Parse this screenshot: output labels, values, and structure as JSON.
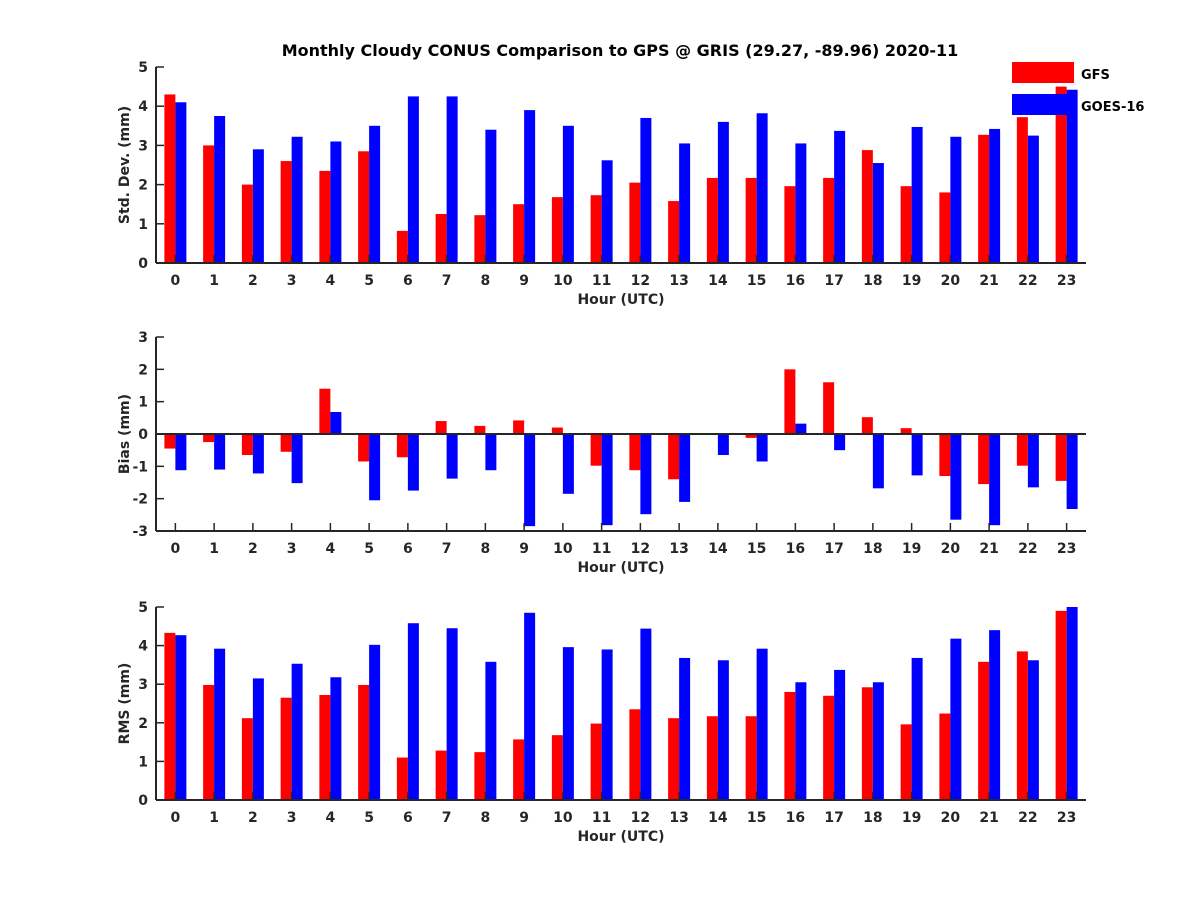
{
  "figure_title": "Monthly Cloudy CONUS Comparison to GPS @ GRIS (29.27, -89.96) 2020-11",
  "colors": {
    "GFS": "#ff0000",
    "GOES-16": "#0000ff"
  },
  "legend": {
    "placement": "top-right",
    "entries": [
      "GFS",
      "GOES-16"
    ]
  },
  "chart_data": [
    {
      "type": "bar",
      "xlabel": "Hour (UTC)",
      "ylabel": "Std. Dev. (mm)",
      "ylim": [
        0,
        5
      ],
      "yticks": [
        "0",
        "1",
        "2",
        "3",
        "4",
        "5"
      ],
      "categories": [
        "0",
        "1",
        "2",
        "3",
        "4",
        "5",
        "6",
        "7",
        "8",
        "9",
        "10",
        "11",
        "12",
        "13",
        "14",
        "15",
        "16",
        "17",
        "18",
        "19",
        "20",
        "21",
        "22",
        "23"
      ],
      "series": [
        {
          "name": "GFS",
          "values": [
            4.3,
            3.0,
            2.0,
            2.6,
            2.35,
            2.85,
            0.82,
            1.25,
            1.22,
            1.5,
            1.68,
            1.73,
            2.05,
            1.58,
            2.17,
            2.17,
            1.96,
            2.17,
            2.88,
            1.96,
            1.8,
            3.27,
            3.72,
            4.5
          ]
        },
        {
          "name": "GOES-16",
          "values": [
            4.1,
            3.75,
            2.9,
            3.22,
            3.1,
            3.5,
            4.25,
            4.25,
            3.4,
            3.9,
            3.5,
            2.62,
            3.7,
            3.05,
            3.6,
            3.82,
            3.05,
            3.37,
            2.55,
            3.47,
            3.22,
            3.42,
            3.25,
            4.42
          ]
        }
      ]
    },
    {
      "type": "bar",
      "xlabel": "Hour (UTC)",
      "ylabel": "Bias (mm)",
      "ylim": [
        -3,
        3
      ],
      "yticks": [
        "-3",
        "-2",
        "-1",
        "0",
        "1",
        "2",
        "3"
      ],
      "categories": [
        "0",
        "1",
        "2",
        "3",
        "4",
        "5",
        "6",
        "7",
        "8",
        "9",
        "10",
        "11",
        "12",
        "13",
        "14",
        "15",
        "16",
        "17",
        "18",
        "19",
        "20",
        "21",
        "22",
        "23"
      ],
      "series": [
        {
          "name": "GFS",
          "values": [
            -0.45,
            -0.25,
            -0.65,
            -0.55,
            1.4,
            -0.85,
            -0.72,
            0.4,
            0.25,
            0.42,
            0.2,
            -0.98,
            -1.12,
            -1.4,
            0.0,
            -0.12,
            2.0,
            1.6,
            0.52,
            0.18,
            -1.3,
            -1.55,
            -0.98,
            -1.45
          ]
        },
        {
          "name": "GOES-16",
          "values": [
            -1.12,
            -1.1,
            -1.22,
            -1.52,
            0.68,
            -2.05,
            -1.75,
            -1.38,
            -1.12,
            -2.85,
            -1.85,
            -2.82,
            -2.48,
            -2.1,
            -0.65,
            -0.85,
            0.32,
            -0.5,
            -1.68,
            -1.28,
            -2.65,
            -2.82,
            -1.65,
            -2.32
          ]
        }
      ]
    },
    {
      "type": "bar",
      "xlabel": "Hour (UTC)",
      "ylabel": "RMS (mm)",
      "ylim": [
        0,
        5
      ],
      "yticks": [
        "0",
        "1",
        "2",
        "3",
        "4",
        "5"
      ],
      "categories": [
        "0",
        "1",
        "2",
        "3",
        "4",
        "5",
        "6",
        "7",
        "8",
        "9",
        "10",
        "11",
        "12",
        "13",
        "14",
        "15",
        "16",
        "17",
        "18",
        "19",
        "20",
        "21",
        "22",
        "23"
      ],
      "series": [
        {
          "name": "GFS",
          "values": [
            4.33,
            2.98,
            2.12,
            2.65,
            2.72,
            2.98,
            1.1,
            1.28,
            1.24,
            1.57,
            1.68,
            1.98,
            2.35,
            2.12,
            2.17,
            2.17,
            2.8,
            2.7,
            2.92,
            1.96,
            2.24,
            3.58,
            3.85,
            4.9
          ]
        },
        {
          "name": "GOES-16",
          "values": [
            4.27,
            3.92,
            3.15,
            3.53,
            3.18,
            4.02,
            4.58,
            4.45,
            3.58,
            4.85,
            3.96,
            3.9,
            4.44,
            3.68,
            3.62,
            3.92,
            3.05,
            3.37,
            3.05,
            3.68,
            4.18,
            4.4,
            3.62,
            5.0
          ]
        }
      ]
    }
  ]
}
